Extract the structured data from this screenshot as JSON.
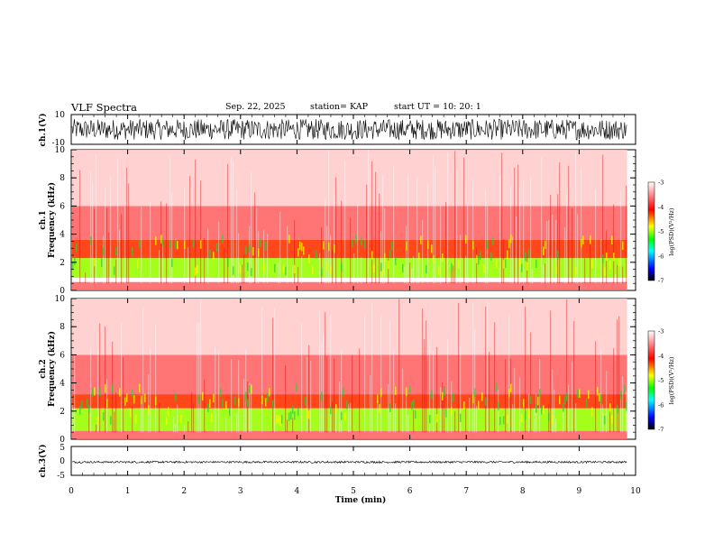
{
  "header": {
    "title": "VLF Spectra",
    "date": "Sep. 22, 2025",
    "station": "station= KAP",
    "start": "start  UT  =   10: 20: 1"
  },
  "chart_data": {
    "type": "heatmap",
    "title": "VLF Spectra",
    "xlabel": "Time  (min)",
    "xlim": [
      0,
      10
    ],
    "x_ticks": [
      "0",
      "1",
      "2",
      "3",
      "4",
      "5",
      "6",
      "7",
      "8",
      "9",
      "10"
    ],
    "data_end_min": 9.85,
    "panels": [
      {
        "id": "ch1-waveform",
        "type": "line",
        "ylabel": "ch.1(V)",
        "ylim": [
          -10,
          10
        ],
        "y_ticks": [
          "10",
          "-10"
        ],
        "description_level": "dense noise waveform, amplitude roughly +/-7 V",
        "amplitude_v": 7
      },
      {
        "id": "ch1-spectrogram",
        "type": "heatmap",
        "ylabel": "ch.1\nFrequency  (kHz)",
        "ylim": [
          0,
          10
        ],
        "y_ticks": [
          "0",
          "2",
          "4",
          "6",
          "8",
          "10"
        ],
        "bands_khz": [
          {
            "from": 0.0,
            "to": 0.6,
            "level": -3.6
          },
          {
            "from": 0.6,
            "to": 0.9,
            "level": -3.0
          },
          {
            "from": 0.9,
            "to": 2.3,
            "level": -4.7
          },
          {
            "from": 2.3,
            "to": 3.6,
            "level": -4.1
          },
          {
            "from": 3.6,
            "to": 6.0,
            "level": -3.6
          },
          {
            "from": 6.0,
            "to": 10.0,
            "level": -3.2
          }
        ],
        "colorbar": {
          "label": "log(PSD)(V²/Hz)",
          "range": [
            -7,
            -3
          ],
          "ticks": [
            "-3",
            "-4",
            "-5",
            "-6",
            "-7"
          ]
        }
      },
      {
        "id": "ch2-spectrogram",
        "type": "heatmap",
        "ylabel": "ch.2\nFrequency  (kHz)",
        "ylim": [
          0,
          10
        ],
        "y_ticks": [
          "0",
          "2",
          "4",
          "6",
          "8",
          "10"
        ],
        "bands_khz": [
          {
            "from": 0.0,
            "to": 0.6,
            "level": -3.6
          },
          {
            "from": 0.6,
            "to": 2.2,
            "level": -4.7
          },
          {
            "from": 2.2,
            "to": 3.2,
            "level": -4.1
          },
          {
            "from": 3.2,
            "to": 6.0,
            "level": -3.6
          },
          {
            "from": 6.0,
            "to": 10.0,
            "level": -3.2
          }
        ],
        "colorbar": {
          "label": "log(PSD)(V²/Hz)",
          "range": [
            -7,
            -3
          ],
          "ticks": [
            "-3",
            "-4",
            "-5",
            "-6",
            "-7"
          ]
        }
      },
      {
        "id": "ch3-waveform",
        "type": "line",
        "ylabel": "ch.3(V)",
        "ylim": [
          -5,
          5
        ],
        "y_ticks": [
          "5",
          "0",
          "-5"
        ],
        "description_level": "thick constant band near -0.4 V",
        "level_v": -0.4,
        "amplitude_v": 0.35
      }
    ],
    "colormap": [
      {
        "value": -3,
        "color": "#ffffff"
      },
      {
        "value": -4,
        "color": "#ff0000"
      },
      {
        "value": -4.5,
        "color": "#ffff00"
      },
      {
        "value": -5,
        "color": "#00ff00"
      },
      {
        "value": -6,
        "color": "#0000ff"
      },
      {
        "value": -7,
        "color": "#000000"
      }
    ]
  }
}
